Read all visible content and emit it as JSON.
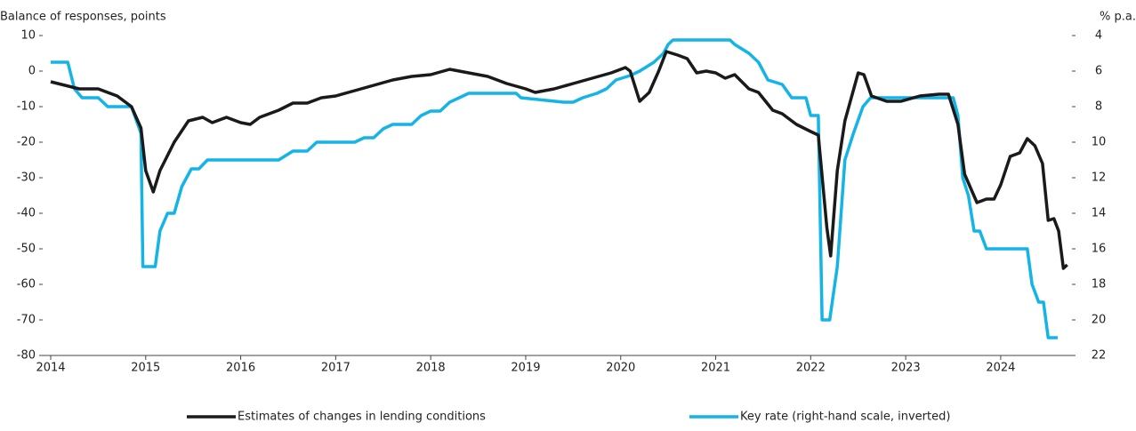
{
  "chart_data": {
    "type": "line",
    "ylabel": "Balance of responses, points",
    "y2label": "% p.a.",
    "xlim": [
      2014,
      2024.75
    ],
    "xticks": [
      2014,
      2015,
      2016,
      2017,
      2018,
      2019,
      2020,
      2021,
      2022,
      2023,
      2024
    ],
    "ylim": [
      -80,
      10
    ],
    "yticks": [
      10,
      0,
      -10,
      -20,
      -30,
      -40,
      -50,
      -60,
      -70,
      -80
    ],
    "y2lim": [
      4,
      22
    ],
    "y2ticks": [
      4,
      6,
      8,
      10,
      12,
      14,
      16,
      18,
      20,
      22
    ],
    "y2_inverted": true,
    "legend": "bottom",
    "series": [
      {
        "name": "Estimates of changes in lending conditions",
        "color": "#1a1a1a",
        "x": [
          2014.0,
          2014.3,
          2014.5,
          2014.7,
          2014.85,
          2014.95,
          2015.0,
          2015.08,
          2015.15,
          2015.3,
          2015.45,
          2015.6,
          2015.7,
          2015.85,
          2016.0,
          2016.1,
          2016.2,
          2016.4,
          2016.55,
          2016.7,
          2016.85,
          2017.0,
          2017.2,
          2017.4,
          2017.6,
          2017.8,
          2018.0,
          2018.2,
          2018.4,
          2018.6,
          2018.8,
          2019.0,
          2019.1,
          2019.3,
          2019.5,
          2019.7,
          2019.9,
          2020.05,
          2020.1,
          2020.2,
          2020.3,
          2020.4,
          2020.48,
          2020.6,
          2020.7,
          2020.8,
          2020.9,
          2021.0,
          2021.1,
          2021.2,
          2021.35,
          2021.45,
          2021.6,
          2021.7,
          2021.85,
          2022.0,
          2022.08,
          2022.17,
          2022.21,
          2022.28,
          2022.36,
          2022.5,
          2022.56,
          2022.64,
          2022.8,
          2022.95,
          2023.15,
          2023.35,
          2023.45,
          2023.55,
          2023.62,
          2023.75,
          2023.85,
          2023.93,
          2024.0,
          2024.1,
          2024.2,
          2024.28,
          2024.36,
          2024.44,
          2024.5,
          2024.56,
          2024.61,
          2024.66,
          2024.7
        ],
        "values": [
          -3,
          -5,
          -5,
          -7,
          -10,
          -16,
          -28,
          -34,
          -28,
          -20,
          -14,
          -13,
          -14.5,
          -13,
          -14.5,
          -15,
          -13,
          -11,
          -9,
          -9,
          -7.5,
          -7,
          -5.5,
          -4,
          -2.5,
          -1.5,
          -1,
          0.5,
          -0.5,
          -1.5,
          -3.5,
          -5,
          -6,
          -5,
          -3.5,
          -2,
          -0.5,
          1,
          0,
          -8.5,
          -6,
          0,
          5.5,
          4.5,
          3.5,
          -0.5,
          0,
          -0.5,
          -2,
          -1,
          -5,
          -6,
          -11,
          -12,
          -15,
          -17,
          -18,
          -44,
          -52,
          -28,
          -14,
          -0.5,
          -1,
          -7,
          -8.5,
          -8.5,
          -7,
          -6.5,
          -6.5,
          -15,
          -29,
          -37,
          -36,
          -36,
          -32,
          -24,
          -23,
          -19,
          -21,
          -26,
          -42,
          -41.5,
          -45,
          -55.5,
          -54.5
        ]
      },
      {
        "name": "Key rate (right-hand scale, inverted)",
        "color": "#14b4e6",
        "axis": "y2",
        "x": [
          2014.0,
          2014.18,
          2014.25,
          2014.33,
          2014.5,
          2014.6,
          2014.85,
          2014.95,
          2014.97,
          2015.1,
          2015.15,
          2015.23,
          2015.3,
          2015.38,
          2015.48,
          2015.56,
          2015.65,
          2016.4,
          2016.55,
          2016.7,
          2016.8,
          2017.2,
          2017.3,
          2017.4,
          2017.5,
          2017.6,
          2017.8,
          2017.9,
          2018.0,
          2018.1,
          2018.2,
          2018.3,
          2018.4,
          2018.9,
          2018.95,
          2019.4,
          2019.5,
          2019.6,
          2019.75,
          2019.85,
          2019.95,
          2020.1,
          2020.2,
          2020.35,
          2020.45,
          2020.5,
          2020.55,
          2021.15,
          2021.2,
          2021.35,
          2021.45,
          2021.55,
          2021.7,
          2021.8,
          2021.95,
          2022.0,
          2022.08,
          2022.12,
          2022.2,
          2022.28,
          2022.36,
          2022.45,
          2022.55,
          2022.63,
          2023.5,
          2023.55,
          2023.6,
          2023.66,
          2023.72,
          2023.78,
          2023.85,
          2024.28,
          2024.33,
          2024.4,
          2024.45,
          2024.5,
          2024.6
        ],
        "values": [
          5.5,
          5.5,
          7,
          7.5,
          7.5,
          8,
          8,
          9.5,
          17,
          17,
          15,
          14,
          14,
          12.5,
          11.5,
          11.5,
          11,
          11,
          10.5,
          10.5,
          10,
          10,
          9.75,
          9.75,
          9.25,
          9,
          9,
          8.5,
          8.25,
          8.25,
          7.75,
          7.5,
          7.25,
          7.25,
          7.5,
          7.75,
          7.75,
          7.5,
          7.25,
          7,
          6.5,
          6.25,
          6,
          5.5,
          5,
          4.5,
          4.25,
          4.25,
          4.5,
          5,
          5.5,
          6.5,
          6.75,
          7.5,
          7.5,
          8.5,
          8.5,
          20,
          20,
          17,
          11,
          9.5,
          8,
          7.5,
          7.5,
          8.5,
          12,
          13,
          15,
          15,
          16,
          16,
          18,
          19,
          19,
          21,
          21
        ]
      }
    ]
  }
}
